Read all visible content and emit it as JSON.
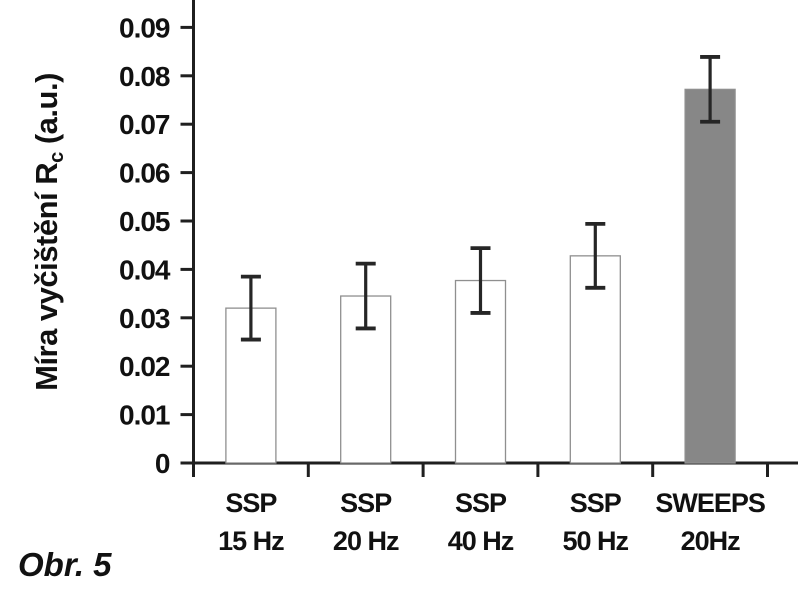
{
  "figure": {
    "caption": "Obr. 5"
  },
  "chart_data": {
    "type": "bar",
    "title": "",
    "xlabel": "",
    "ylabel": "Míra vyčištění Rc (a.u.)",
    "ylabel_parts": {
      "prefix": "Míra vyčištění R",
      "subscript": "c",
      "suffix": " (a.u.)"
    },
    "ylim": [
      0,
      0.095
    ],
    "grid": false,
    "legend": null,
    "yticks": [
      {
        "value": 0.0,
        "label": "0"
      },
      {
        "value": 0.01,
        "label": "0.01"
      },
      {
        "value": 0.02,
        "label": "0.02"
      },
      {
        "value": 0.03,
        "label": "0.03"
      },
      {
        "value": 0.04,
        "label": "0.04"
      },
      {
        "value": 0.05,
        "label": "0.05"
      },
      {
        "value": 0.06,
        "label": "0.06"
      },
      {
        "value": 0.07,
        "label": "0.07"
      },
      {
        "value": 0.08,
        "label": "0.08"
      },
      {
        "value": 0.09,
        "label": "0.09"
      }
    ],
    "categories": [
      {
        "line1": "SSP",
        "line2": "15 Hz"
      },
      {
        "line1": "SSP",
        "line2": "20 Hz"
      },
      {
        "line1": "SSP",
        "line2": "40 Hz"
      },
      {
        "line1": "SSP",
        "line2": "50 Hz"
      },
      {
        "line1": "SWEEPS",
        "line2": "20Hz"
      }
    ],
    "values": [
      0.032,
      0.0345,
      0.0377,
      0.0428,
      0.0772
    ],
    "errors": [
      0.0065,
      0.0067,
      0.0067,
      0.0066,
      0.0067
    ],
    "bar_fills": [
      "#ffffff",
      "#ffffff",
      "#ffffff",
      "#ffffff",
      "#878787"
    ],
    "colors": {
      "axis": "#1f1f1f",
      "bar_outline": "#8f8f8f",
      "error_bar": "#262626",
      "highlight_fill": "#878787",
      "default_fill": "#ffffff",
      "text": "#111111"
    }
  }
}
